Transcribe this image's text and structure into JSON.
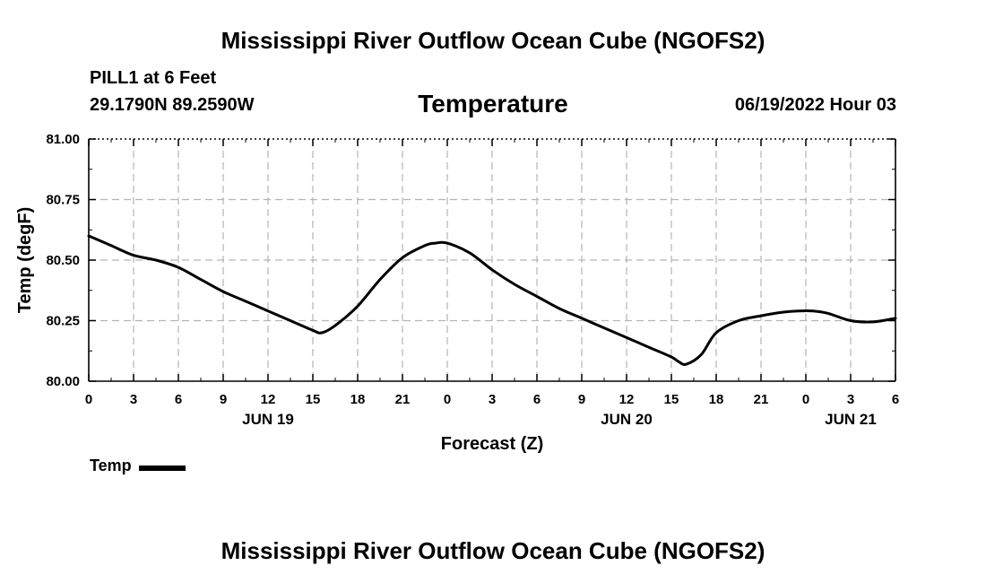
{
  "page_title": "Mississippi River Outflow Ocean Cube (NGOFS2)",
  "footer_title": "Mississippi River Outflow Ocean Cube (NGOFS2)",
  "station": "PILL1 at 6 Feet",
  "coordinates": "29.1790N  89.2590W",
  "datetime": "06/19/2022 Hour 03",
  "chart_data": {
    "type": "line",
    "title": "Temperature",
    "xlabel": "Forecast (Z)",
    "ylabel": "Temp (degF)",
    "xlim": [
      0,
      54
    ],
    "ylim": [
      80.0,
      81.0
    ],
    "y_ticks": [
      "80.00",
      "80.25",
      "80.50",
      "80.75",
      "81.00"
    ],
    "x_ticks": [
      "0",
      "3",
      "6",
      "9",
      "12",
      "15",
      "18",
      "21",
      "0",
      "3",
      "6",
      "9",
      "12",
      "15",
      "18",
      "21",
      "0",
      "3",
      "6"
    ],
    "day_labels": [
      {
        "hour": 12,
        "label": "JUN 19"
      },
      {
        "hour": 36,
        "label": "JUN 20"
      },
      {
        "hour": 51,
        "label": "JUN 21"
      }
    ],
    "grid": true,
    "legend": "bottom-left",
    "series": [
      {
        "name": "Temp",
        "x": [
          0,
          1.5,
          3,
          4.5,
          6,
          7.5,
          9,
          10.5,
          12,
          13.5,
          15,
          15.6,
          16.5,
          18,
          19.5,
          21,
          22.5,
          23.2,
          24,
          25.5,
          27,
          28.5,
          30,
          31.5,
          33,
          34.5,
          36,
          37.5,
          39,
          39.5,
          40,
          41,
          42,
          43.5,
          45,
          46.5,
          47.5,
          48.5,
          49.5,
          51,
          52.5,
          54
        ],
        "values": [
          80.6,
          80.56,
          80.52,
          80.5,
          80.47,
          80.42,
          80.37,
          80.33,
          80.29,
          80.25,
          80.21,
          80.2,
          80.23,
          80.31,
          80.42,
          80.51,
          80.56,
          80.57,
          80.57,
          80.53,
          80.46,
          80.4,
          80.35,
          80.3,
          80.26,
          80.22,
          80.18,
          80.14,
          80.1,
          80.08,
          80.07,
          80.11,
          80.2,
          80.25,
          80.27,
          80.285,
          80.29,
          80.29,
          80.28,
          80.25,
          80.245,
          80.26
        ]
      }
    ]
  }
}
